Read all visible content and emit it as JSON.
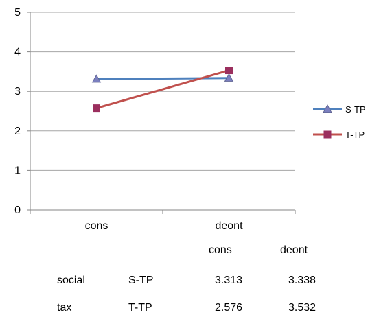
{
  "chart_data": {
    "type": "line",
    "categories": [
      "cons",
      "deont"
    ],
    "y_ticks": [
      "0",
      "1",
      "2",
      "3",
      "4",
      "5"
    ],
    "ylim": [
      0,
      5
    ],
    "grid": "horizontal",
    "legend_position": "right",
    "series": [
      {
        "name": "S-TP",
        "values": [
          3.313,
          3.338
        ],
        "color": "#4f81bd",
        "marker": "triangle"
      },
      {
        "name": "T-TP",
        "values": [
          2.576,
          3.532
        ],
        "color": "#c0504d",
        "marker_color": "#9b2f5e",
        "marker": "square"
      }
    ]
  },
  "table": {
    "header": [
      "cons",
      "deont"
    ],
    "rows": [
      {
        "group": "social",
        "series": "S-TP",
        "cons": "3.313",
        "deont": "3.338"
      },
      {
        "group": "tax",
        "series": "T-TP",
        "cons": "2.576",
        "deont": "3.532"
      }
    ]
  }
}
